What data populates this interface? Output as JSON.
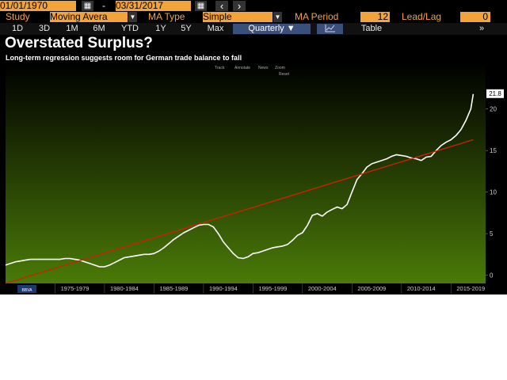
{
  "toolbar": {
    "start_date": "01/01/1970",
    "separator": "-",
    "end_date": "03/31/2017",
    "prev_icon": "‹",
    "next_icon": "›",
    "study_label": "Study",
    "study_value": "Moving Avera",
    "ma_type_label": "MA Type",
    "ma_type_value": "Simple",
    "ma_period_label": "MA Period",
    "ma_period_value": "12",
    "lead_lag_label": "Lead/Lag",
    "lead_lag_value": "0"
  },
  "ranges": [
    "1D",
    "3D",
    "1M",
    "6M",
    "YTD",
    "1Y",
    "5Y",
    "Max"
  ],
  "frequency": "Quarterly ▼",
  "table_label": "Table",
  "expand_icon": "»",
  "chart_tools": {
    "track": "Track",
    "annotate": "Annotate",
    "news": "News",
    "zoom": "Zoom",
    "reset": "Reset"
  },
  "source_badge": "BBVA",
  "colors": {
    "terminal_bg": "#000000",
    "field_orange": "#f2a43a",
    "label_orange": "#f0a43a",
    "plot_top": "#000000",
    "plot_bottom": "#4a7a08",
    "series_line": "#ffffff",
    "trend_line": "#cc2200"
  },
  "chart_data": {
    "type": "line",
    "title": "Overstated Surplus?",
    "subtitle": "Long-term regression suggests room for German trade balance to fall",
    "x_tick_labels": [
      "1975-1979",
      "1980-1984",
      "1985-1989",
      "1990-1994",
      "1995-1999",
      "2000-2004",
      "2005-2009",
      "2010-2014",
      "2015-2019"
    ],
    "y_ticks": [
      0,
      5,
      10,
      15,
      20
    ],
    "xlim": [
      1970,
      2018.5
    ],
    "ylim": [
      -1,
      25.5
    ],
    "last_value_label": "21.8",
    "last_value": 21.8,
    "series": [
      {
        "x": [
          1970.0,
          1970.5,
          1971.0,
          1971.5,
          1972.0,
          1972.5,
          1973.0,
          1973.5,
          1974.0,
          1974.5,
          1975.0,
          1975.5,
          1976.0,
          1976.5,
          1977.0,
          1977.5,
          1978.0,
          1978.5,
          1979.0,
          1979.5,
          1980.0,
          1980.5,
          1981.0,
          1981.5,
          1982.0,
          1982.5,
          1983.0,
          1983.5,
          1984.0,
          1984.5,
          1985.0,
          1985.5,
          1986.0,
          1986.5,
          1987.0,
          1987.5,
          1988.0,
          1988.5,
          1989.0,
          1989.5,
          1990.0,
          1990.5,
          1991.0,
          1991.5,
          1992.0,
          1992.5,
          1993.0,
          1993.5,
          1994.0,
          1994.5,
          1995.0,
          1995.5,
          1996.0,
          1996.5,
          1997.0,
          1997.5,
          1998.0,
          1998.5,
          1999.0,
          1999.5,
          2000.0,
          2000.5,
          2001.0,
          2001.5,
          2002.0,
          2002.5,
          2003.0,
          2003.5,
          2004.0,
          2004.5,
          2005.0,
          2005.5,
          2006.0,
          2006.5,
          2007.0,
          2007.5,
          2008.0,
          2008.5,
          2009.0,
          2009.5,
          2010.0,
          2010.5,
          2011.0,
          2011.5,
          2012.0,
          2012.5,
          2013.0,
          2013.5,
          2014.0,
          2014.5,
          2015.0,
          2015.5,
          2016.0,
          2016.5,
          2017.0,
          2017.25
        ],
        "values": [
          1.2,
          1.4,
          1.6,
          1.7,
          1.8,
          1.9,
          1.9,
          1.9,
          1.9,
          1.9,
          1.9,
          1.9,
          2.0,
          2.0,
          1.9,
          1.8,
          1.6,
          1.4,
          1.2,
          1.0,
          1.0,
          1.2,
          1.5,
          1.8,
          2.1,
          2.2,
          2.3,
          2.4,
          2.5,
          2.5,
          2.6,
          2.9,
          3.3,
          3.8,
          4.3,
          4.7,
          5.1,
          5.4,
          5.7,
          6.0,
          6.1,
          6.1,
          5.8,
          5.0,
          4.0,
          3.3,
          2.6,
          2.1,
          2.0,
          2.2,
          2.6,
          2.7,
          2.9,
          3.1,
          3.3,
          3.4,
          3.5,
          3.7,
          4.2,
          4.8,
          5.1,
          6.0,
          7.2,
          7.4,
          7.1,
          7.6,
          7.9,
          8.2,
          8.0,
          8.5,
          10.0,
          11.5,
          12.2,
          13.0,
          13.4,
          13.6,
          13.8,
          14.0,
          14.3,
          14.5,
          14.4,
          14.3,
          14.1,
          14.0,
          13.8,
          14.2,
          14.3,
          15.0,
          15.6,
          16.0,
          16.3,
          16.8,
          17.5,
          18.6,
          20.0,
          21.8
        ]
      },
      {
        "x": [
          1970.0,
          2017.25
        ],
        "values": [
          -1.0,
          16.3
        ]
      }
    ]
  }
}
